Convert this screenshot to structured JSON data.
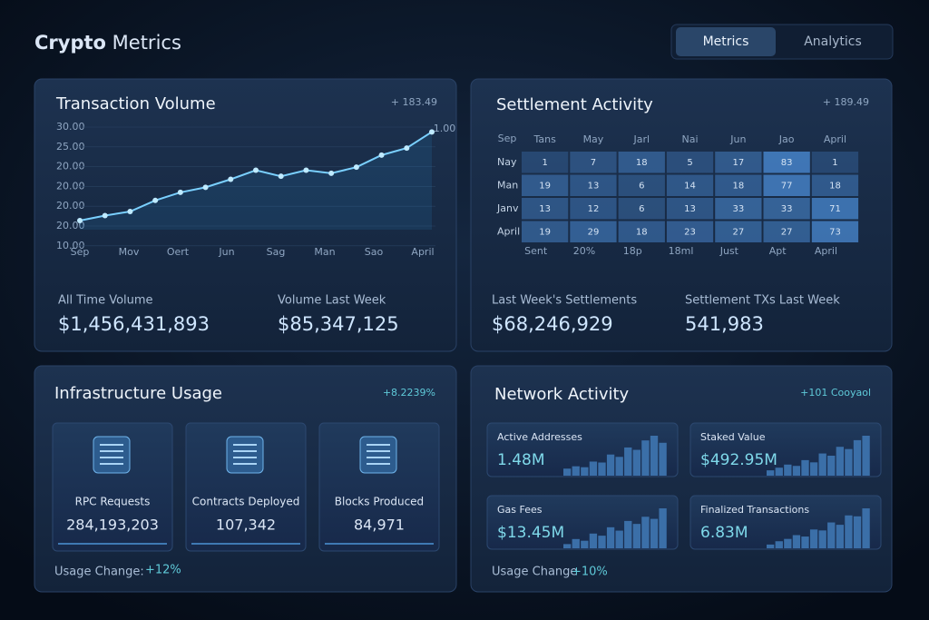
{
  "header": {
    "brand_bold": "Crypto",
    "brand_rest": "Metrics",
    "tabs": [
      "Metrics",
      "Analytics"
    ],
    "active_tab": 0
  },
  "transaction_volume": {
    "title": "Transaction Volume",
    "badge": "+ 183.49",
    "chart": {
      "y_labels": [
        "30.00",
        "25.00",
        "20.00",
        "20.00",
        "20.00",
        "20.00",
        "10.00"
      ],
      "right_label": "1.00",
      "x_labels": [
        "Sep",
        "Mov",
        "Oert",
        "Jun",
        "Sag",
        "Man",
        "Sao",
        "April"
      ],
      "values": [
        9,
        14,
        18,
        29,
        37,
        42,
        50,
        59,
        53,
        59,
        56,
        62,
        74,
        81,
        97
      ],
      "ylim": [
        0,
        100
      ]
    },
    "stats": [
      {
        "label": "All Time Volume",
        "value": "$1,456,431,893"
      },
      {
        "label": "Volume Last Week",
        "value": "$85,347,125"
      }
    ]
  },
  "settlement_activity": {
    "title": "Settlement Activity",
    "badge": "+ 189.49",
    "corner": "Sep",
    "columns": [
      "Tans",
      "May",
      "Jarl",
      "Nai",
      "Jun",
      "Jao",
      "April"
    ],
    "rows": [
      {
        "label": "Nay",
        "cells": [
          1,
          7,
          18,
          5,
          17,
          83,
          1
        ]
      },
      {
        "label": "Man",
        "cells": [
          19,
          13,
          6,
          14,
          18,
          77,
          18
        ]
      },
      {
        "label": "Janv",
        "cells": [
          13,
          12,
          6,
          13,
          33,
          33,
          71
        ]
      },
      {
        "label": "April",
        "cells": [
          19,
          29,
          18,
          23,
          27,
          27,
          73
        ]
      }
    ],
    "footer_labels": [
      "Sent",
      "20%",
      "18p",
      "18ml",
      "Just",
      "Apt",
      "April"
    ],
    "stats": [
      {
        "label": "Last Week's Settlements",
        "value": "$68,246,929"
      },
      {
        "label": "Settlement TXs Last Week",
        "value": "541,983"
      }
    ]
  },
  "infrastructure_usage": {
    "title": "Infrastructure Usage",
    "badge": "+8.2239%",
    "cards": [
      {
        "label": "RPC Requests",
        "value": "284,193,203"
      },
      {
        "label": "Contracts Deployed",
        "value": "107,342"
      },
      {
        "label": "Blocks Produced",
        "value": "84,971"
      }
    ],
    "footer_label": "Usage Change:",
    "footer_value": "+12%"
  },
  "network_activity": {
    "title": "Network Activity",
    "badge": "+101 Cooyaol",
    "cards": [
      {
        "label": "Active Addresses",
        "value": "1.48M",
        "bars": [
          15,
          20,
          18,
          30,
          28,
          45,
          40,
          60,
          55,
          75,
          85,
          70
        ]
      },
      {
        "label": "Staked Value",
        "value": "$492.95M",
        "bars": [
          12,
          18,
          25,
          22,
          35,
          30,
          50,
          45,
          65,
          60,
          80,
          90
        ]
      },
      {
        "label": "Gas Fees",
        "value": "$13.45M",
        "bars": [
          10,
          22,
          18,
          35,
          30,
          50,
          42,
          65,
          58,
          75,
          70,
          95
        ]
      },
      {
        "label": "Finalized Transactions",
        "value": "6.83M",
        "bars": [
          8,
          15,
          20,
          28,
          25,
          40,
          38,
          55,
          50,
          70,
          68,
          85
        ]
      }
    ],
    "footer_label": "Usage Change",
    "footer_value": "+10%"
  }
}
